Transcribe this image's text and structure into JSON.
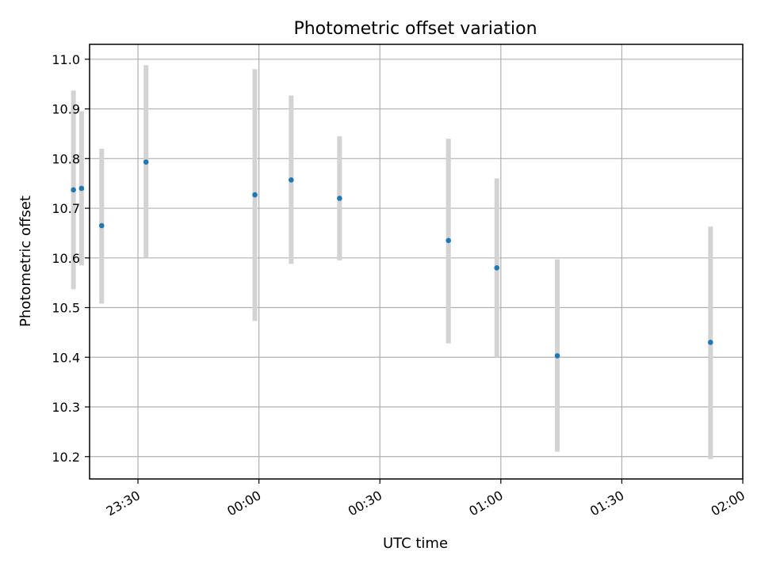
{
  "chart_data": {
    "type": "scatter",
    "title": "Photometric offset variation",
    "xlabel": "UTC time",
    "ylabel": "Photometric offset",
    "x_axis_type": "time",
    "xlim": [
      "23:18",
      "02:00"
    ],
    "ylim": [
      10.155,
      11.03
    ],
    "xticks": [
      "23:30",
      "00:00",
      "00:30",
      "01:00",
      "01:30",
      "02:00"
    ],
    "yticks": [
      "10.2",
      "10.3",
      "10.4",
      "10.5",
      "10.6",
      "10.7",
      "10.8",
      "10.9",
      "11.0"
    ],
    "grid": true,
    "legend": "none",
    "marker_color": "#1f77b4",
    "errorbar_color": "#d3d3d3",
    "points": [
      {
        "x": "23:14",
        "y": 10.737,
        "err_low": 10.537,
        "err_high": 10.937
      },
      {
        "x": "23:16",
        "y": 10.74,
        "err_low": 10.585,
        "err_high": 10.895
      },
      {
        "x": "23:21",
        "y": 10.665,
        "err_low": 10.508,
        "err_high": 10.82
      },
      {
        "x": "23:32",
        "y": 10.793,
        "err_low": 10.6,
        "err_high": 10.988
      },
      {
        "x": "23:59",
        "y": 10.727,
        "err_low": 10.473,
        "err_high": 10.98
      },
      {
        "x": "00:08",
        "y": 10.757,
        "err_low": 10.588,
        "err_high": 10.927
      },
      {
        "x": "00:20",
        "y": 10.72,
        "err_low": 10.595,
        "err_high": 10.845
      },
      {
        "x": "00:47",
        "y": 10.635,
        "err_low": 10.428,
        "err_high": 10.84
      },
      {
        "x": "00:59",
        "y": 10.58,
        "err_low": 10.4,
        "err_high": 10.76
      },
      {
        "x": "01:14",
        "y": 10.403,
        "err_low": 10.21,
        "err_high": 10.597
      },
      {
        "x": "01:52",
        "y": 10.43,
        "err_low": 10.195,
        "err_high": 10.663
      }
    ]
  }
}
